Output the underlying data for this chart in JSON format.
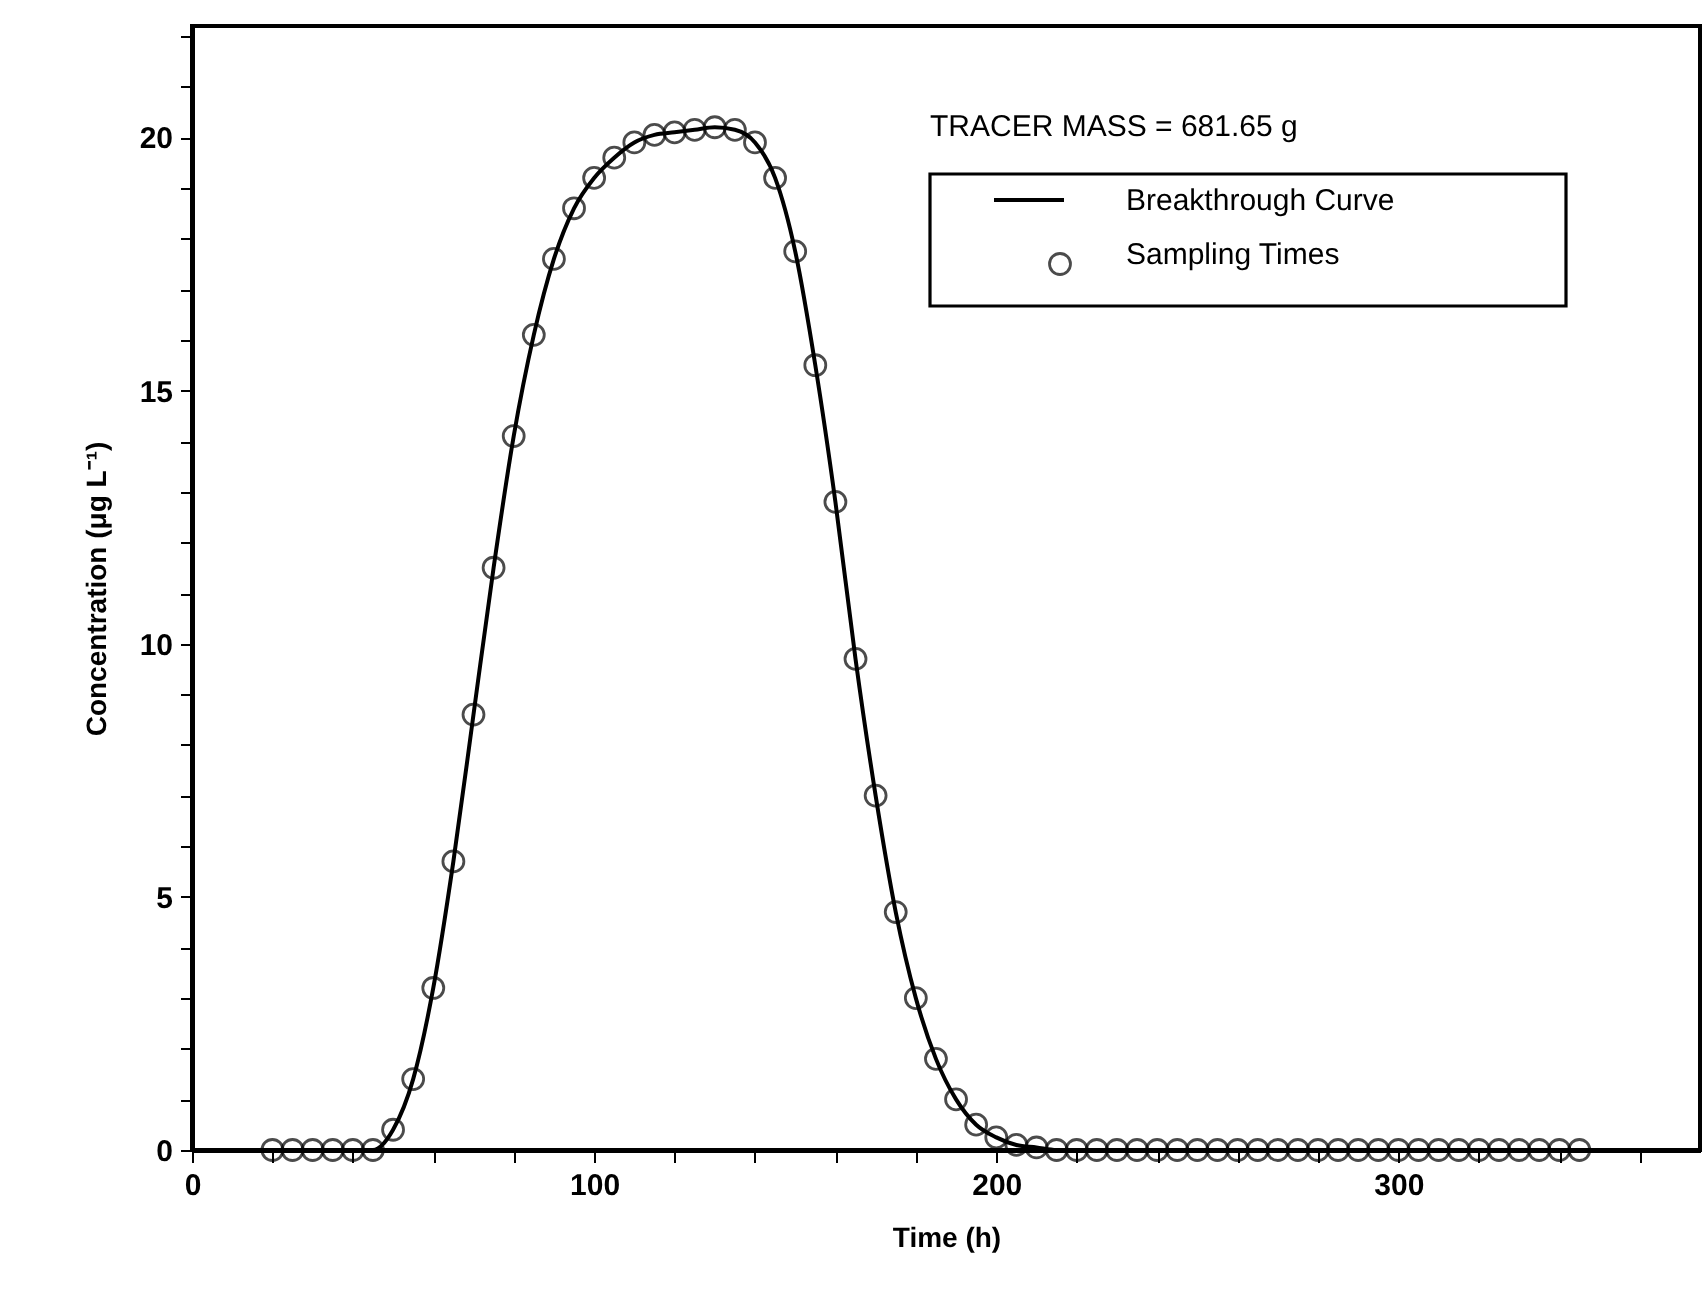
{
  "chart_data": {
    "type": "line",
    "xlabel": "Time (h)",
    "ylabel": "Concentration (μg L⁻¹)",
    "annotations": [
      "TRACER MASS =  681.65 g"
    ],
    "xlim": [
      0,
      375
    ],
    "ylim": [
      0,
      22.2
    ],
    "xticks": [
      0,
      {
        "value": 20,
        "label": null
      },
      {
        "value": 40,
        "label": null
      },
      {
        "value": 60,
        "label": null
      },
      {
        "value": 80,
        "label": null
      },
      100,
      {
        "value": 120,
        "label": null
      },
      {
        "value": 140,
        "label": null
      },
      {
        "value": 160,
        "label": null
      },
      {
        "value": 180,
        "label": null
      },
      200,
      {
        "value": 220,
        "label": null
      },
      {
        "value": 240,
        "label": null
      },
      {
        "value": 260,
        "label": null
      },
      {
        "value": 280,
        "label": null
      },
      300,
      {
        "value": 320,
        "label": null
      },
      {
        "value": 340,
        "label": null
      },
      {
        "value": 360,
        "label": null
      }
    ],
    "yticks": [
      0,
      {
        "value": 1,
        "label": null
      },
      {
        "value": 2,
        "label": null
      },
      {
        "value": 3,
        "label": null
      },
      {
        "value": 4,
        "label": null
      },
      5,
      {
        "value": 6,
        "label": null
      },
      {
        "value": 7,
        "label": null
      },
      {
        "value": 8,
        "label": null
      },
      {
        "value": 9,
        "label": null
      },
      10,
      {
        "value": 11,
        "label": null
      },
      {
        "value": 12,
        "label": null
      },
      {
        "value": 13,
        "label": null
      },
      {
        "value": 14,
        "label": null
      },
      15,
      {
        "value": 16,
        "label": null
      },
      {
        "value": 17,
        "label": null
      },
      {
        "value": 18,
        "label": null
      },
      {
        "value": 19,
        "label": null
      },
      20,
      {
        "value": 21,
        "label": null
      },
      {
        "value": 22,
        "label": null
      }
    ],
    "legend": "top right",
    "line_style": "solid",
    "series": [
      {
        "name": "Breakthrough Curve",
        "type": "line",
        "marker": "none",
        "color": "#000000",
        "x": [
          0,
          45,
          50,
          55,
          60,
          65,
          70,
          75,
          80,
          85,
          90,
          95,
          100,
          105,
          110,
          115,
          120,
          125,
          130,
          135,
          140,
          145,
          150,
          155,
          160,
          165,
          170,
          175,
          180,
          185,
          190,
          195,
          200,
          205,
          210,
          215,
          375
        ],
        "values": [
          0,
          0,
          0.4,
          1.4,
          3.2,
          5.7,
          8.6,
          11.5,
          14.1,
          16.1,
          17.6,
          18.6,
          19.2,
          19.6,
          19.9,
          20.05,
          20.1,
          20.15,
          20.2,
          20.15,
          19.9,
          19.2,
          17.75,
          15.5,
          12.8,
          9.7,
          7.0,
          4.7,
          3.0,
          1.8,
          1.0,
          0.5,
          0.25,
          0.1,
          0.05,
          0,
          0
        ]
      },
      {
        "name": "Sampling Times",
        "type": "scatter",
        "marker": "circle",
        "color": "#000000",
        "x": [
          20,
          25,
          30,
          35,
          40,
          45,
          50,
          55,
          60,
          65,
          70,
          75,
          80,
          85,
          90,
          95,
          100,
          105,
          110,
          115,
          120,
          125,
          130,
          135,
          140,
          145,
          150,
          155,
          160,
          165,
          170,
          175,
          180,
          185,
          190,
          195,
          200,
          205,
          210,
          215,
          220,
          225,
          230,
          235,
          240,
          245,
          250,
          255,
          260,
          265,
          270,
          275,
          280,
          285,
          290,
          295,
          300,
          305,
          310,
          315,
          320,
          325,
          330,
          335,
          340,
          345
        ],
        "values": [
          0,
          0,
          0,
          0,
          0,
          0,
          0.4,
          1.4,
          3.2,
          5.7,
          8.6,
          11.5,
          14.1,
          16.1,
          17.6,
          18.6,
          19.2,
          19.6,
          19.9,
          20.05,
          20.1,
          20.15,
          20.2,
          20.15,
          19.9,
          19.2,
          17.75,
          15.5,
          12.8,
          9.7,
          7.0,
          4.7,
          3.0,
          1.8,
          1.0,
          0.5,
          0.25,
          0.1,
          0.05,
          0,
          0,
          0,
          0,
          0,
          0,
          0,
          0,
          0,
          0,
          0,
          0,
          0,
          0,
          0,
          0,
          0,
          0,
          0,
          0,
          0,
          0,
          0,
          0,
          0,
          0,
          0
        ]
      }
    ]
  }
}
